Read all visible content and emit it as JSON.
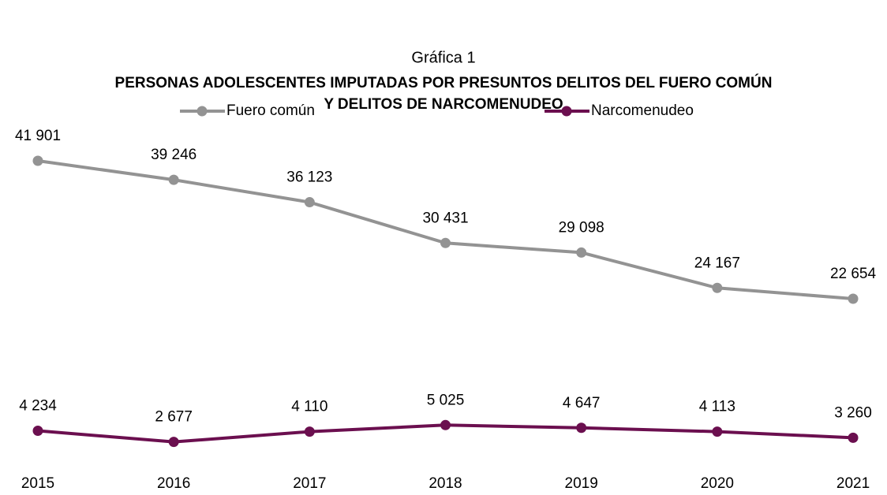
{
  "chart_data": {
    "type": "line",
    "subtitle": "Gráfica 1",
    "title": [
      "PERSONAS ADOLESCENTES IMPUTADAS POR PRESUNTOS DELITOS DEL FUERO COMÚN",
      "Y DELITOS DE NARCOMENUDEO"
    ],
    "categories": [
      "2015",
      "2016",
      "2017",
      "2018",
      "2019",
      "2020",
      "2021"
    ],
    "series": [
      {
        "name": "Fuero común",
        "color": "#939393",
        "values": [
          41901,
          39246,
          36123,
          30431,
          29098,
          24167,
          22654
        ],
        "value_labels": [
          "41 901",
          "39 246",
          "36 123",
          "30 431",
          "29 098",
          "24 167",
          "22 654"
        ]
      },
      {
        "name": "Narcomenudeo",
        "color": "#6b0f4f",
        "values": [
          4234,
          2677,
          4110,
          5025,
          4647,
          4113,
          3260
        ],
        "value_labels": [
          "4 234",
          "2 677",
          "4 110",
          "5 025",
          "4 647",
          "4 113",
          "3 260"
        ]
      }
    ]
  }
}
